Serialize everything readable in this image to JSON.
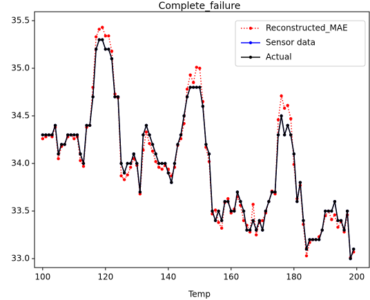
{
  "chart_data": {
    "type": "line",
    "title": "Complete_failure",
    "xlabel": "Temp",
    "x": [
      100,
      101,
      102,
      103,
      104,
      105,
      106,
      107,
      108,
      109,
      110,
      111,
      112,
      113,
      114,
      115,
      116,
      117,
      118,
      119,
      120,
      121,
      122,
      123,
      124,
      125,
      126,
      127,
      128,
      129,
      130,
      131,
      132,
      133,
      134,
      135,
      136,
      137,
      138,
      139,
      140,
      141,
      142,
      143,
      144,
      145,
      146,
      147,
      148,
      149,
      150,
      151,
      152,
      153,
      154,
      155,
      156,
      157,
      158,
      159,
      160,
      161,
      162,
      163,
      164,
      165,
      166,
      167,
      168,
      169,
      170,
      171,
      172,
      173,
      174,
      175,
      176,
      177,
      178,
      179,
      180,
      181,
      182,
      183,
      184,
      185,
      186,
      187,
      188,
      189,
      190,
      191,
      192,
      193,
      194,
      195,
      196,
      197,
      198,
      199
    ],
    "series": [
      {
        "name": "Reconstructed_MAE",
        "color": "#ff0000",
        "dash": "dotted",
        "values": [
          34.26,
          34.28,
          34.3,
          34.28,
          34.38,
          34.05,
          34.18,
          34.2,
          34.28,
          34.3,
          34.26,
          34.28,
          34.03,
          33.97,
          34.38,
          34.4,
          34.8,
          35.33,
          35.41,
          35.43,
          35.34,
          35.34,
          35.18,
          34.73,
          34.69,
          33.87,
          33.83,
          33.88,
          33.96,
          34.05,
          33.98,
          33.68,
          34.14,
          34.33,
          34.21,
          34.13,
          34.02,
          33.96,
          33.94,
          33.98,
          33.94,
          33.87,
          33.96,
          34.19,
          34.26,
          34.42,
          34.78,
          34.93,
          34.85,
          35.01,
          35.0,
          34.65,
          34.17,
          34.02,
          33.47,
          33.51,
          33.38,
          33.32,
          33.59,
          33.63,
          33.48,
          33.52,
          33.65,
          33.56,
          33.4,
          33.35,
          33.28,
          33.57,
          33.25,
          33.38,
          33.4,
          33.48,
          33.6,
          33.71,
          33.68,
          34.46,
          34.71,
          34.58,
          34.61,
          34.47,
          33.99,
          33.63,
          33.77,
          33.36,
          33.03,
          33.17,
          33.2,
          33.2,
          33.23,
          33.3,
          33.45,
          33.5,
          33.41,
          33.46,
          33.33,
          33.39,
          33.28,
          33.46,
          33.01,
          33.07
        ]
      },
      {
        "name": "Sensor data",
        "color": "#0000ff",
        "dash": "solid",
        "values": [
          34.3,
          34.3,
          34.3,
          34.3,
          34.4,
          34.1,
          34.2,
          34.2,
          34.3,
          34.3,
          34.3,
          34.3,
          34.1,
          34.0,
          34.4,
          34.4,
          34.7,
          35.2,
          35.3,
          35.3,
          35.2,
          35.2,
          35.1,
          34.7,
          34.7,
          34.0,
          33.9,
          34.0,
          34.0,
          34.1,
          34.0,
          33.7,
          34.3,
          34.4,
          34.3,
          34.2,
          34.1,
          34.0,
          34.0,
          34.0,
          33.9,
          33.8,
          34.0,
          34.2,
          34.3,
          34.5,
          34.7,
          34.8,
          34.8,
          34.8,
          34.8,
          34.6,
          34.2,
          34.1,
          33.5,
          33.4,
          33.5,
          33.4,
          33.6,
          33.6,
          33.5,
          33.5,
          33.7,
          33.6,
          33.5,
          33.3,
          33.3,
          33.4,
          33.3,
          33.4,
          33.3,
          33.5,
          33.6,
          33.7,
          33.7,
          34.3,
          34.5,
          34.3,
          34.4,
          34.3,
          34.1,
          33.6,
          33.8,
          33.4,
          33.1,
          33.2,
          33.2,
          33.2,
          33.2,
          33.3,
          33.5,
          33.5,
          33.5,
          33.6,
          33.4,
          33.4,
          33.3,
          33.5,
          33.0,
          33.1
        ]
      },
      {
        "name": "Actual",
        "color": "#000000",
        "dash": "solid",
        "values": [
          34.3,
          34.3,
          34.3,
          34.3,
          34.4,
          34.1,
          34.2,
          34.2,
          34.3,
          34.3,
          34.3,
          34.3,
          34.1,
          34.0,
          34.4,
          34.4,
          34.7,
          35.2,
          35.3,
          35.3,
          35.2,
          35.2,
          35.1,
          34.7,
          34.7,
          34.0,
          33.9,
          34.0,
          34.0,
          34.1,
          34.0,
          33.7,
          34.3,
          34.4,
          34.3,
          34.2,
          34.1,
          34.0,
          34.0,
          34.0,
          33.9,
          33.8,
          34.0,
          34.2,
          34.3,
          34.5,
          34.7,
          34.8,
          34.8,
          34.8,
          34.8,
          34.6,
          34.2,
          34.1,
          33.5,
          33.4,
          33.5,
          33.4,
          33.6,
          33.6,
          33.5,
          33.5,
          33.7,
          33.6,
          33.5,
          33.3,
          33.3,
          33.4,
          33.3,
          33.4,
          33.3,
          33.5,
          33.6,
          33.7,
          33.7,
          34.3,
          34.5,
          34.3,
          34.4,
          34.3,
          34.1,
          33.6,
          33.8,
          33.4,
          33.1,
          33.2,
          33.2,
          33.2,
          33.2,
          33.3,
          33.5,
          33.5,
          33.5,
          33.6,
          33.4,
          33.4,
          33.3,
          33.5,
          33.0,
          33.1
        ]
      }
    ],
    "xlim": [
      97.4,
      204
    ],
    "ylim": [
      32.906,
      35.594
    ],
    "xticks": [
      100,
      120,
      140,
      160,
      180,
      200
    ],
    "yticks": [
      {
        "value": 33,
        "label": "33.0"
      },
      33.5,
      {
        "value": 34,
        "label": "34.0"
      },
      34.5,
      {
        "value": 35,
        "label": "35.0"
      },
      35.5
    ],
    "legend": "upper right"
  }
}
